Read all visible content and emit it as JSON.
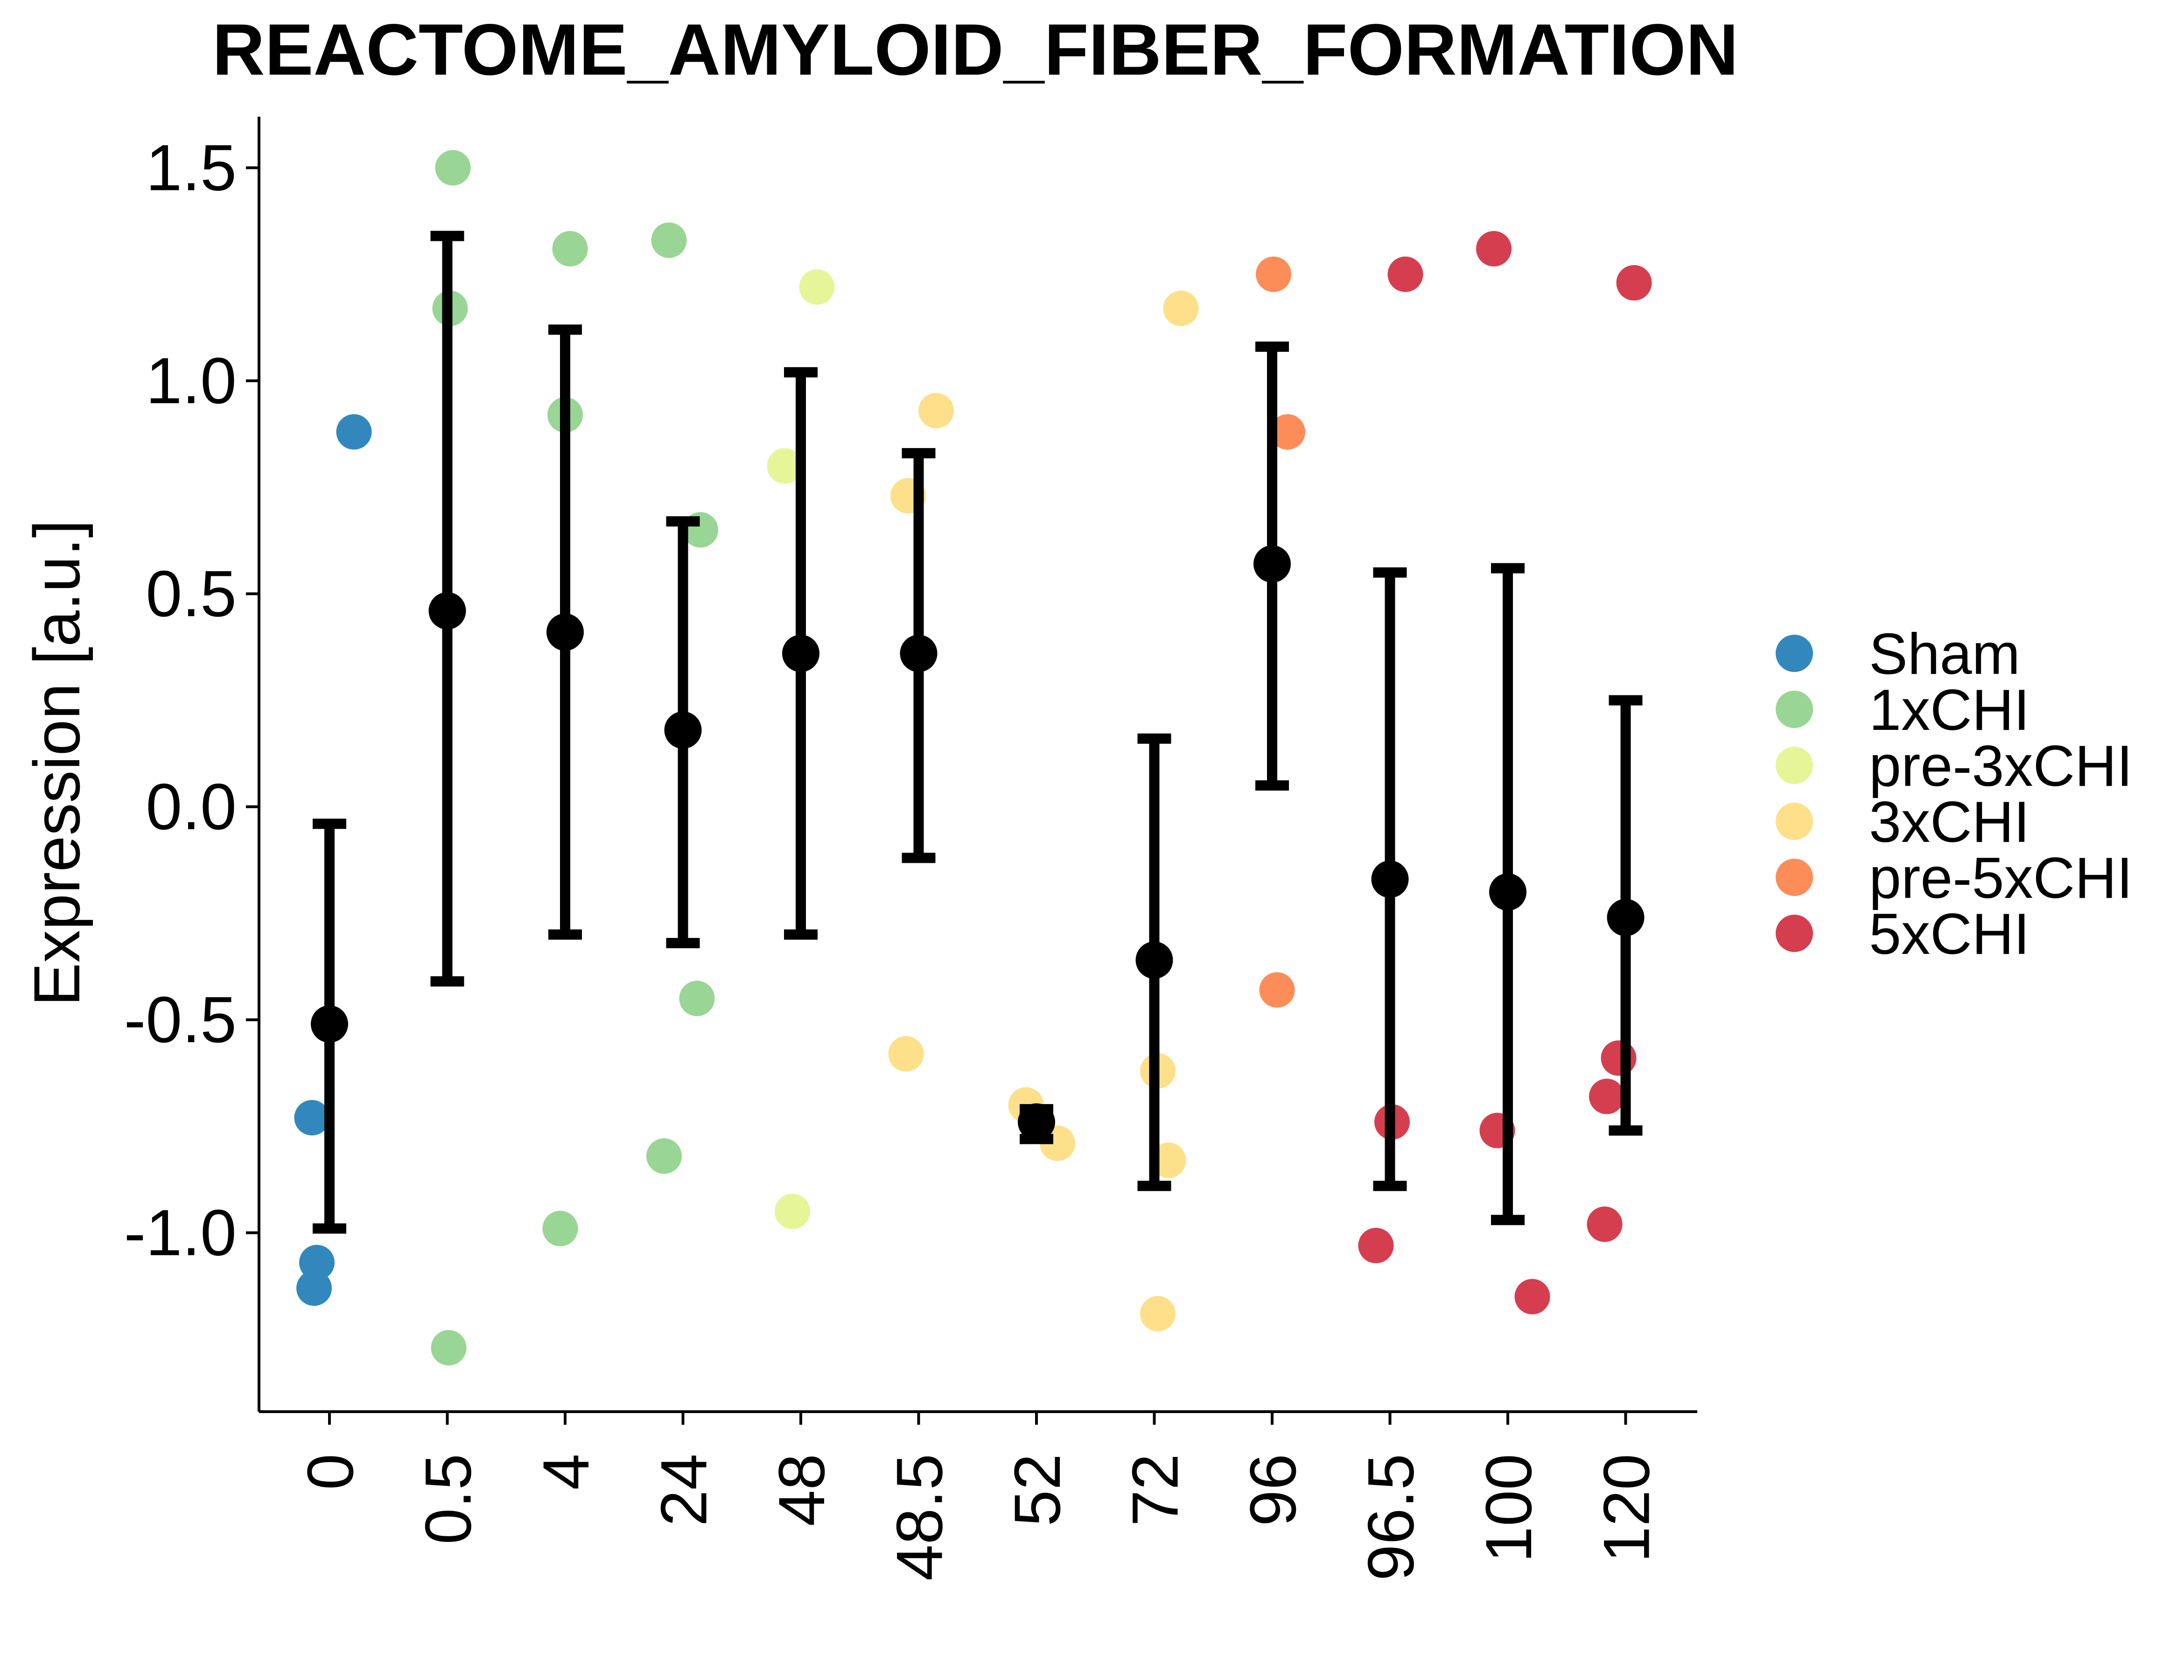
{
  "chart_data": {
    "type": "scatter",
    "title": "REACTOME_AMYLOID_FIBER_FORMATION",
    "xlabel": "",
    "ylabel": "Expression [a.u.]",
    "ylim": [
      -1.42,
      1.62
    ],
    "yticks": [
      1.5,
      1.0,
      0.5,
      0.0,
      -0.5,
      -1.0
    ],
    "ytick_labels": [
      "1.5",
      "1.0",
      "0.5",
      "0.0",
      "-0.5",
      "-1.0"
    ],
    "categories": [
      "0",
      "0.5",
      "4",
      "24",
      "48",
      "48.5",
      "52",
      "72",
      "96",
      "96.5",
      "100",
      "120"
    ],
    "legend_position": "right",
    "grid": false,
    "series": [
      {
        "name": "Sham",
        "color": "#3288BD",
        "points": [
          {
            "category": "0",
            "jitter": -0.25,
            "y": -0.73
          },
          {
            "category": "0",
            "jitter": -0.18,
            "y": -1.07
          },
          {
            "category": "0",
            "jitter": -0.22,
            "y": -1.13
          },
          {
            "category": "0",
            "jitter": 0.35,
            "y": 0.88
          }
        ]
      },
      {
        "name": "1xCHI",
        "color": "#99D594",
        "points": [
          {
            "category": "0.5",
            "jitter": 0.08,
            "y": 1.5
          },
          {
            "category": "0.5",
            "jitter": 0.04,
            "y": 1.17
          },
          {
            "category": "0.5",
            "jitter": 0.02,
            "y": -1.27
          },
          {
            "category": "4",
            "jitter": 0.07,
            "y": 1.31
          },
          {
            "category": "4",
            "jitter": 0.0,
            "y": 0.92
          },
          {
            "category": "4",
            "jitter": -0.07,
            "y": -0.99
          },
          {
            "category": "24",
            "jitter": -0.2,
            "y": 1.33
          },
          {
            "category": "24",
            "jitter": 0.25,
            "y": 0.65
          },
          {
            "category": "24",
            "jitter": 0.2,
            "y": -0.45
          },
          {
            "category": "24",
            "jitter": -0.27,
            "y": -0.82
          }
        ]
      },
      {
        "name": "pre-3xCHI",
        "color": "#E6F598",
        "points": [
          {
            "category": "48",
            "jitter": 0.23,
            "y": 1.22
          },
          {
            "category": "48",
            "jitter": -0.23,
            "y": 0.8
          },
          {
            "category": "48",
            "jitter": -0.12,
            "y": -0.95
          }
        ]
      },
      {
        "name": "3xCHI",
        "color": "#FEE08B",
        "points": [
          {
            "category": "48.5",
            "jitter": 0.25,
            "y": 0.93
          },
          {
            "category": "48.5",
            "jitter": -0.15,
            "y": 0.73
          },
          {
            "category": "48.5",
            "jitter": -0.18,
            "y": -0.58
          },
          {
            "category": "52",
            "jitter": -0.15,
            "y": -0.7
          },
          {
            "category": "52",
            "jitter": 0.3,
            "y": -0.79
          },
          {
            "category": "72",
            "jitter": 0.38,
            "y": 1.17
          },
          {
            "category": "72",
            "jitter": 0.05,
            "y": -0.62
          },
          {
            "category": "72",
            "jitter": 0.2,
            "y": -0.83
          },
          {
            "category": "72",
            "jitter": 0.05,
            "y": -1.19
          }
        ]
      },
      {
        "name": "pre-5xCHI",
        "color": "#FC8D59",
        "points": [
          {
            "category": "96",
            "jitter": 0.02,
            "y": 1.25
          },
          {
            "category": "96",
            "jitter": 0.22,
            "y": 0.88
          },
          {
            "category": "96",
            "jitter": 0.07,
            "y": -0.43
          }
        ]
      },
      {
        "name": "5xCHI",
        "color": "#D53E4F",
        "points": [
          {
            "category": "96.5",
            "jitter": 0.22,
            "y": 1.25
          },
          {
            "category": "96.5",
            "jitter": 0.03,
            "y": -0.74
          },
          {
            "category": "96.5",
            "jitter": -0.2,
            "y": -1.03
          },
          {
            "category": "100",
            "jitter": -0.2,
            "y": 1.31
          },
          {
            "category": "100",
            "jitter": -0.15,
            "y": -0.76
          },
          {
            "category": "100",
            "jitter": 0.35,
            "y": -1.15
          },
          {
            "category": "120",
            "jitter": 0.12,
            "y": 1.23
          },
          {
            "category": "120",
            "jitter": -0.1,
            "y": -0.59
          },
          {
            "category": "120",
            "jitter": -0.27,
            "y": -0.68
          },
          {
            "category": "120",
            "jitter": -0.3,
            "y": -0.98
          }
        ]
      }
    ],
    "summary": {
      "color": "#000000",
      "points": [
        {
          "category": "0",
          "mean": -0.51,
          "lower": -0.99,
          "upper": -0.04
        },
        {
          "category": "0.5",
          "mean": 0.46,
          "lower": -0.41,
          "upper": 1.34
        },
        {
          "category": "4",
          "mean": 0.41,
          "lower": -0.3,
          "upper": 1.12
        },
        {
          "category": "24",
          "mean": 0.18,
          "lower": -0.32,
          "upper": 0.67
        },
        {
          "category": "48",
          "mean": 0.36,
          "lower": -0.3,
          "upper": 1.02
        },
        {
          "category": "48.5",
          "mean": 0.36,
          "lower": -0.12,
          "upper": 0.83
        },
        {
          "category": "52",
          "mean": -0.74,
          "lower": -0.78,
          "upper": -0.71
        },
        {
          "category": "72",
          "mean": -0.36,
          "lower": -0.89,
          "upper": 0.16
        },
        {
          "category": "96",
          "mean": 0.57,
          "lower": 0.05,
          "upper": 1.08
        },
        {
          "category": "96.5",
          "mean": -0.17,
          "lower": -0.89,
          "upper": 0.55
        },
        {
          "category": "100",
          "mean": -0.2,
          "lower": -0.97,
          "upper": 0.56
        },
        {
          "category": "120",
          "mean": -0.26,
          "lower": -0.76,
          "upper": 0.25
        }
      ]
    }
  }
}
